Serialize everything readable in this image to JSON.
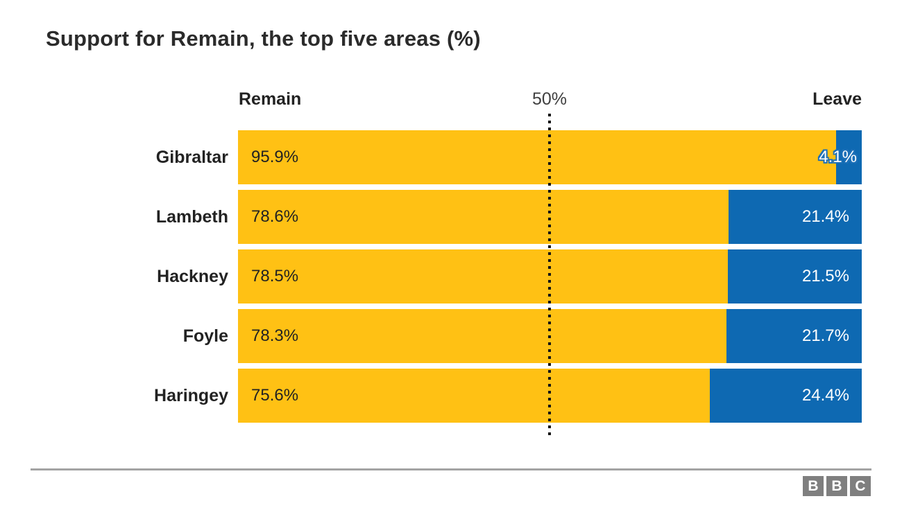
{
  "title": "Support for Remain, the top five areas (%)",
  "header": {
    "remain_label": "Remain",
    "center_label": "50%",
    "leave_label": "Leave"
  },
  "colors": {
    "remain_yellow": "#ffc114",
    "leave_blue": "#0e69b2",
    "outline_blue": "#1d70b8",
    "title_text": "#2b2b2b",
    "rule_grey": "#a3a3a3",
    "logo_grey": "#7f7f7f"
  },
  "chart_data": {
    "type": "bar",
    "orientation": "horizontal-stacked",
    "title": "Support for Remain, the top five areas (%)",
    "categories": [
      "Gibraltar",
      "Lambeth",
      "Hackney",
      "Foyle",
      "Haringey"
    ],
    "series": [
      {
        "name": "Remain",
        "color": "#ffc114",
        "values": [
          95.9,
          78.6,
          78.5,
          78.3,
          75.6
        ],
        "labels": [
          "95.9%",
          "78.6%",
          "78.5%",
          "78.3%",
          "75.6%"
        ]
      },
      {
        "name": "Leave",
        "color": "#0e69b2",
        "values": [
          4.1,
          21.4,
          21.5,
          21.7,
          24.4
        ],
        "labels": [
          "4.1%",
          "21.4%",
          "21.5%",
          "21.7%",
          "24.4%"
        ]
      }
    ],
    "xlim": [
      0,
      100
    ],
    "reference_line": {
      "value": 50,
      "label": "50%"
    },
    "grid": false,
    "legend_position": "column-headers"
  },
  "footer": {
    "logo_letters": [
      "B",
      "B",
      "C"
    ]
  }
}
